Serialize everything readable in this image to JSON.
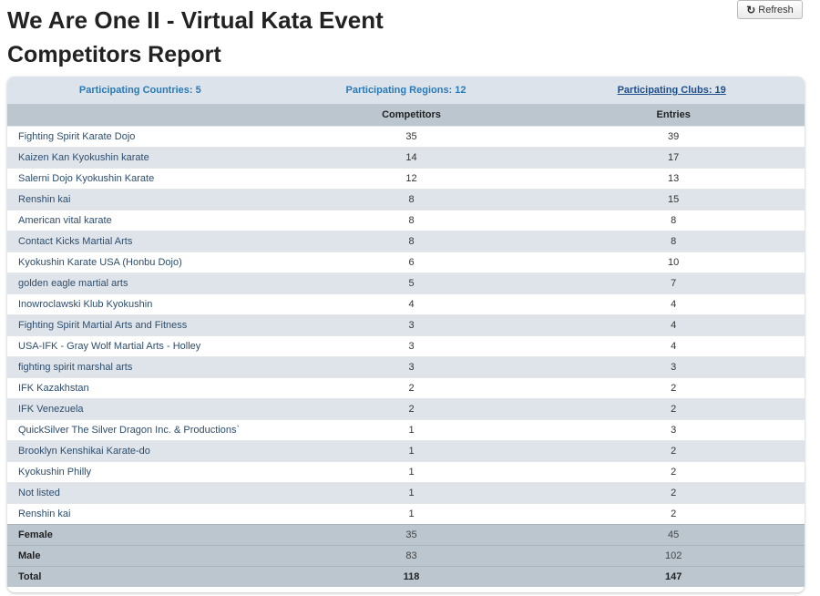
{
  "header": {
    "title": "We Are One II - Virtual Kata Event",
    "subtitle": "Competitors Report",
    "refresh_label": "Refresh"
  },
  "summary": {
    "countries": "Participating Countries: 5",
    "regions": "Participating Regions: 12",
    "clubs": "Participating Clubs: 19"
  },
  "table": {
    "columns": [
      "",
      "Competitors",
      "Entries"
    ],
    "rows": [
      {
        "name": "Fighting Spirit Karate Dojo",
        "competitors": "35",
        "entries": "39"
      },
      {
        "name": "Kaizen Kan Kyokushin karate",
        "competitors": "14",
        "entries": "17"
      },
      {
        "name": "Salerni Dojo Kyokushin Karate",
        "competitors": "12",
        "entries": "13"
      },
      {
        "name": "Renshin kai",
        "competitors": "8",
        "entries": "15"
      },
      {
        "name": "American vital karate",
        "competitors": "8",
        "entries": "8"
      },
      {
        "name": "Contact Kicks Martial Arts",
        "competitors": "8",
        "entries": "8"
      },
      {
        "name": "Kyokushin Karate USA (Honbu Dojo)",
        "competitors": "6",
        "entries": "10"
      },
      {
        "name": "golden eagle martial arts",
        "competitors": "5",
        "entries": "7"
      },
      {
        "name": "Inowroclawski Klub Kyokushin",
        "competitors": "4",
        "entries": "4"
      },
      {
        "name": "Fighting Spirit Martial Arts and Fitness",
        "competitors": "3",
        "entries": "4"
      },
      {
        "name": "USA-IFK - Gray Wolf Martial Arts - Holley",
        "competitors": "3",
        "entries": "4"
      },
      {
        "name": "fighting spirit marshal arts",
        "competitors": "3",
        "entries": "3"
      },
      {
        "name": "IFK Kazakhstan",
        "competitors": "2",
        "entries": "2"
      },
      {
        "name": "IFK Venezuela",
        "competitors": "2",
        "entries": "2"
      },
      {
        "name": "QuickSilver The Silver Dragon Inc. & Productions`",
        "competitors": "1",
        "entries": "3"
      },
      {
        "name": "Brooklyn Kenshikai Karate-do",
        "competitors": "1",
        "entries": "2"
      },
      {
        "name": "Kyokushin Philly",
        "competitors": "1",
        "entries": "2"
      },
      {
        "name": "Not listed",
        "competitors": "1",
        "entries": "2"
      },
      {
        "name": "Renshin kai",
        "competitors": "1",
        "entries": "2"
      }
    ],
    "footer": [
      {
        "label": "Female",
        "competitors": "35",
        "entries": "45"
      },
      {
        "label": "Male",
        "competitors": "83",
        "entries": "102"
      },
      {
        "label": "Total",
        "competitors": "118",
        "entries": "147"
      }
    ]
  }
}
